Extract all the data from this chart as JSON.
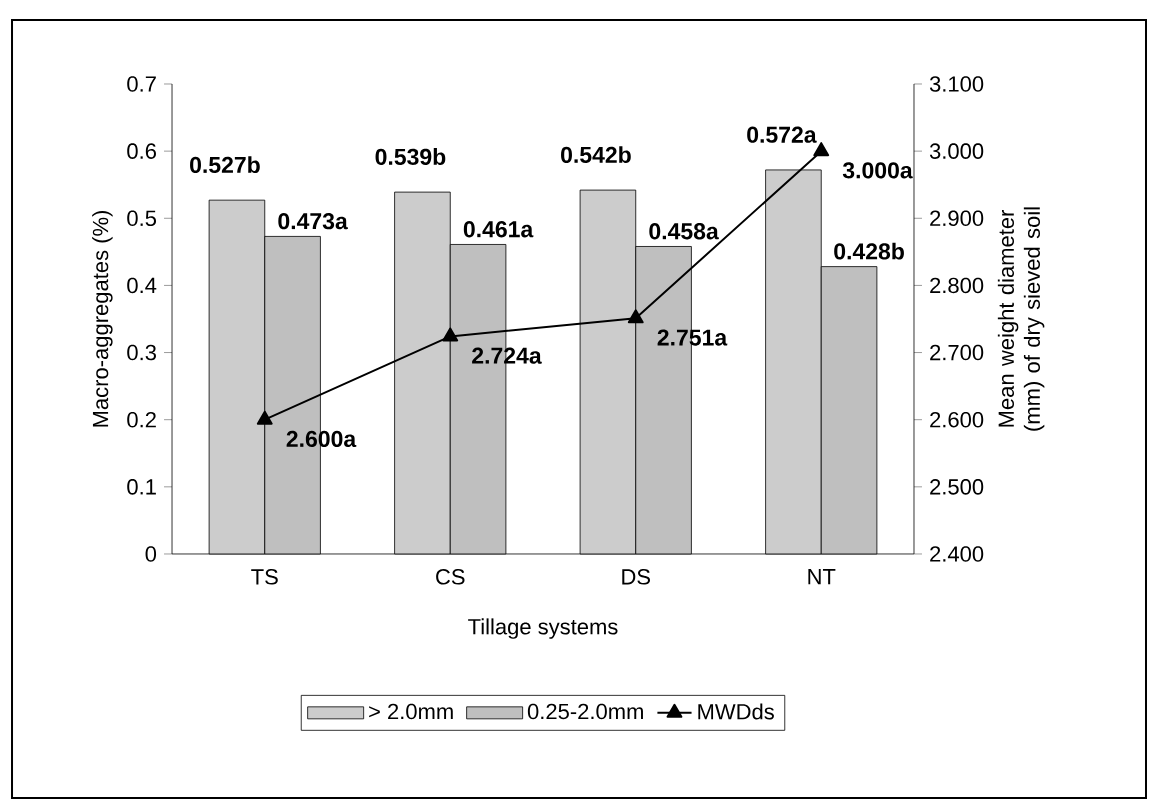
{
  "chart_data": {
    "type": "bar",
    "xlabel": "Tillage systems",
    "ylabel": "Macro-aggregates (%)",
    "y2label": "Mean weight diameter (mm) of dry sieved soil",
    "categories": [
      "TS",
      "CS",
      "DS",
      "NT"
    ],
    "series": [
      {
        "name": "> 2.0mm",
        "color": "#cccccc",
        "values": [
          0.527,
          0.539,
          0.542,
          0.572
        ],
        "value_labels": [
          "0.527b",
          "0.539b",
          "0.542b",
          "0.572a"
        ]
      },
      {
        "name": "0.25-2.0mm",
        "color": "#bfbfbf",
        "values": [
          0.473,
          0.461,
          0.458,
          0.428
        ],
        "value_labels": [
          "0.473a",
          "0.461a",
          "0.458a",
          "0.428b"
        ]
      },
      {
        "name": "MWDds",
        "type": "line",
        "axis": "y2",
        "color": "#000000",
        "marker": "triangle",
        "line_style": "solid",
        "values": [
          2.6,
          2.724,
          2.751,
          3.0
        ],
        "value_labels": [
          "2.600a",
          "2.724a",
          "2.751a",
          "3.000a"
        ]
      }
    ],
    "ylim": [
      0,
      0.7
    ],
    "yticks": [
      0,
      0.1,
      0.2,
      0.3,
      0.4,
      0.5,
      0.6,
      0.7
    ],
    "y2lim": [
      2.4,
      3.1
    ],
    "y2ticks": [
      {
        "value": 2.4,
        "label": "2.400"
      },
      {
        "value": 2.5,
        "label": "2.500"
      },
      {
        "value": 2.6,
        "label": "2.600"
      },
      {
        "value": 2.7,
        "label": "2.700"
      },
      {
        "value": 2.8,
        "label": "2.800"
      },
      {
        "value": 2.9,
        "label": "2.900"
      },
      {
        "value": 3.0,
        "label": "3.000"
      },
      {
        "value": 3.1,
        "label": "3.100"
      }
    ],
    "legend": "bottom",
    "grid": false
  }
}
